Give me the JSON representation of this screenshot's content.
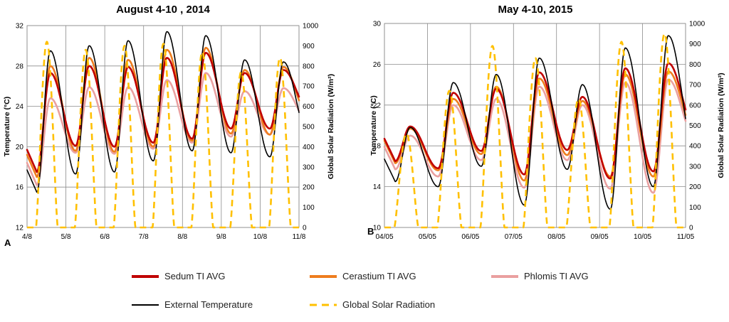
{
  "chart_data": [
    {
      "type": "line",
      "panel_label": "A",
      "title": "August 4-10 , 2014",
      "ylabel": "Temperature (°C)",
      "y2label": "Global Solar Radiation (W/m²)",
      "xlim": [
        0,
        7
      ],
      "ylim": [
        12,
        32
      ],
      "y2lim": [
        0,
        1000
      ],
      "yticks": [
        "12",
        "16",
        "20",
        "24",
        "28",
        "32"
      ],
      "y2ticks": [
        "0",
        "100",
        "200",
        "300",
        "400",
        "500",
        "600",
        "700",
        "800",
        "900",
        "1000"
      ],
      "xticks": [
        "4/8",
        "5/8",
        "6/8",
        "7/8",
        "8/8",
        "9/8",
        "10/8",
        "11/8"
      ],
      "series": [
        {
          "name": "External Temperature",
          "color": "#000000",
          "axis": "left",
          "peaks": [
            29.5,
            30.0,
            30.5,
            31.4,
            31.0,
            28.6,
            28.4
          ],
          "troughs": [
            15.5,
            17.3,
            17.5,
            18.6,
            19.6,
            19.4,
            19.0,
            21.0
          ]
        },
        {
          "name": "Cerastium TI AVG",
          "color": "#ee7d1e",
          "axis": "left",
          "peaks": [
            28.0,
            28.8,
            28.6,
            29.6,
            29.8,
            27.6,
            27.9
          ],
          "troughs": [
            17.0,
            19.6,
            19.5,
            20.0,
            20.6,
            21.3,
            21.2,
            23.0
          ]
        },
        {
          "name": "Sedum TI AVG",
          "color": "#c00000",
          "axis": "left",
          "peaks": [
            27.3,
            28.0,
            27.9,
            28.8,
            29.3,
            27.3,
            27.6
          ],
          "troughs": [
            17.5,
            20.1,
            20.0,
            20.4,
            20.8,
            21.8,
            21.8,
            23.7
          ]
        },
        {
          "name": "Phlomis TI AVG",
          "color": "#eaa0a0",
          "axis": "left",
          "peaks": [
            24.8,
            25.9,
            25.9,
            26.6,
            27.3,
            25.5,
            25.8
          ],
          "troughs": [
            16.2,
            19.4,
            19.3,
            19.8,
            20.4,
            21.0,
            21.2,
            22.5
          ]
        },
        {
          "name": "Global Solar Radiation",
          "color": "#ffc000",
          "axis": "right",
          "peaks": [
            920,
            880,
            900,
            910,
            870,
            770,
            840
          ]
        }
      ]
    },
    {
      "type": "line",
      "panel_label": "B",
      "title": "May 4-10, 2015",
      "ylabel": "Temperature (°C)",
      "y2label": "Global Solar Radiation (W/m²)",
      "xlim": [
        0,
        7
      ],
      "ylim": [
        10,
        30
      ],
      "y2lim": [
        0,
        1000
      ],
      "yticks": [
        "10",
        "14",
        "18",
        "22",
        "26",
        "30"
      ],
      "y2ticks": [
        "0",
        "100",
        "200",
        "300",
        "400",
        "500",
        "600",
        "700",
        "800",
        "900",
        "1000"
      ],
      "xticks": [
        "04/05",
        "05/05",
        "06/05",
        "07/05",
        "08/05",
        "09/05",
        "10/05",
        "11/05"
      ],
      "series": [
        {
          "name": "External Temperature",
          "color": "#000000",
          "axis": "left",
          "peaks": [
            19.8,
            24.2,
            25.0,
            26.6,
            24.0,
            27.6,
            28.8
          ],
          "troughs": [
            14.5,
            14.0,
            16.0,
            12.2,
            15.7,
            11.8,
            14.0,
            16.8
          ]
        },
        {
          "name": "Cerastium TI AVG",
          "color": "#ee7d1e",
          "axis": "left",
          "peaks": [
            19.7,
            22.6,
            23.8,
            24.6,
            22.4,
            25.0,
            25.3
          ],
          "troughs": [
            16.3,
            15.6,
            17.2,
            14.6,
            17.1,
            15.0,
            15.0,
            19.0
          ]
        },
        {
          "name": "Sedum TI AVG",
          "color": "#c00000",
          "axis": "left",
          "peaks": [
            19.9,
            23.2,
            23.6,
            25.2,
            22.8,
            25.6,
            26.1
          ],
          "troughs": [
            16.5,
            15.8,
            17.5,
            15.2,
            17.6,
            14.8,
            15.5,
            19.4
          ]
        },
        {
          "name": "Phlomis TI AVG",
          "color": "#eaa0a0",
          "axis": "left",
          "peaks": [
            19.0,
            22.0,
            22.6,
            23.8,
            22.0,
            24.2,
            24.5
          ],
          "troughs": [
            15.7,
            15.0,
            16.6,
            13.9,
            16.6,
            13.8,
            13.4,
            18.5
          ]
        },
        {
          "name": "Global Solar Radiation",
          "color": "#ffc000",
          "axis": "right",
          "peaks": [
            460,
            670,
            890,
            830,
            630,
            910,
            950
          ]
        }
      ]
    }
  ],
  "legend": [
    {
      "label": "Sedum TI AVG",
      "color": "#c00000",
      "dashed": false
    },
    {
      "label": "Cerastium TI AVG",
      "color": "#ee7d1e",
      "dashed": false
    },
    {
      "label": "Phlomis TI AVG",
      "color": "#eaa0a0",
      "dashed": false
    },
    {
      "label": "External Temperature",
      "color": "#000000",
      "dashed": false
    },
    {
      "label": "Global Solar Radiation",
      "color": "#ffc000",
      "dashed": true
    }
  ]
}
